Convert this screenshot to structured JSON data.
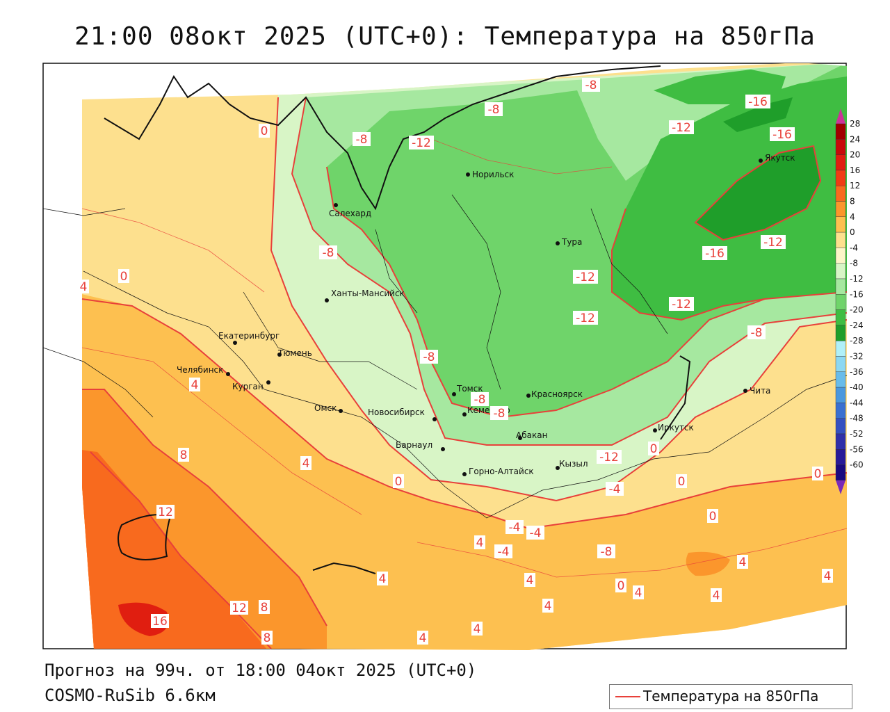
{
  "title": "21:00 08окт 2025 (UTC+0): Температура на 850гПа",
  "forecast_line": "Прогноз на 99ч. от 18:00 04окт 2025 (UTC+0)",
  "model_line": "COSMO-RuSib 6.6км",
  "legend": {
    "label": "Температура на 850гПа",
    "color": "#e8403a"
  },
  "colorbar": {
    "ticks": [
      "28",
      "24",
      "20",
      "16",
      "12",
      "8",
      "4",
      "0",
      "-4",
      "-8",
      "-12",
      "-16",
      "-20",
      "-24",
      "-28",
      "-32",
      "-36",
      "-40",
      "-44",
      "-48",
      "-52",
      "-56",
      "-60"
    ],
    "colors": [
      "#a00000",
      "#c80a0a",
      "#e01e10",
      "#f03c14",
      "#f86a1e",
      "#fb962c",
      "#fdc050",
      "#fde08e",
      "#fdf5c8",
      "#d8f5c6",
      "#a6e8a0",
      "#6fd46a",
      "#3fbd42",
      "#1f9e2a",
      "#b0f0f8",
      "#8cd8f2",
      "#68bcea",
      "#4a98de",
      "#3a70d0",
      "#3450c0",
      "#3030a8",
      "#281a98",
      "#1a0a80"
    ]
  },
  "cities": [
    {
      "name": "Салехард"
    },
    {
      "name": "Норильск"
    },
    {
      "name": "Якутск"
    },
    {
      "name": "Тура"
    },
    {
      "name": "Ханты-Мансийск"
    },
    {
      "name": "Екатеринбург"
    },
    {
      "name": "Тюмень"
    },
    {
      "name": "Челябинск"
    },
    {
      "name": "Курган"
    },
    {
      "name": "Омск"
    },
    {
      "name": "Новосибирск"
    },
    {
      "name": "Томск"
    },
    {
      "name": "Кемерово"
    },
    {
      "name": "Красноярск"
    },
    {
      "name": "Абакан"
    },
    {
      "name": "Барнаул"
    },
    {
      "name": "Горно-Алтайск"
    },
    {
      "name": "Кызыл"
    },
    {
      "name": "Иркутск"
    },
    {
      "name": "Чита"
    }
  ],
  "contour_labels": [
    "-8",
    "-8",
    "-8",
    "-12",
    "-16",
    "-16",
    "-12",
    "-12",
    "-16",
    "-8",
    "-12",
    "-12",
    "-12",
    "-8",
    "-8",
    "0",
    "0",
    "4",
    "4",
    "-8",
    "8",
    "4",
    "0",
    "-8",
    "-12",
    "-4",
    "-4",
    "0",
    "0",
    "0",
    "0",
    "-4",
    "-8",
    "-4",
    "0",
    "4",
    "4",
    "4",
    "4",
    "4",
    "4",
    "4",
    "12",
    "12",
    "8",
    "16",
    "8",
    "4",
    "4",
    "4"
  ]
}
